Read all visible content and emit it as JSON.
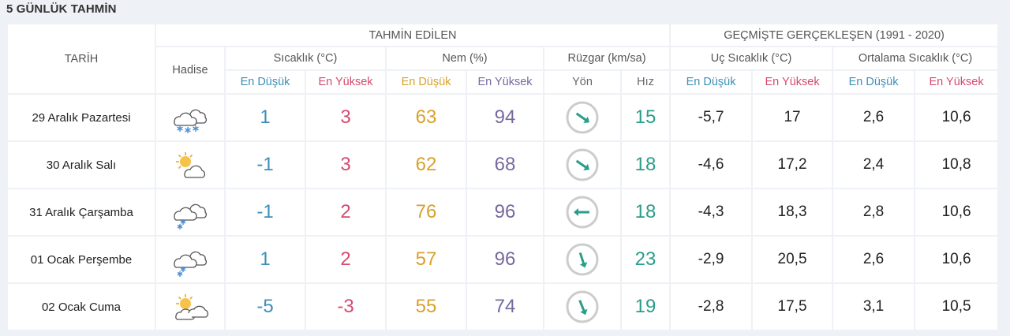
{
  "title": "5 GÜNLÜK TAHMİN",
  "headers": {
    "tarih": "TARİH",
    "tahmin": "TAHMİN EDİLEN",
    "gecmis": "GEÇMİŞTE GERÇEKLEŞEN (1991 - 2020)",
    "hadise": "Hadise",
    "sicaklik": "Sıcaklık (°C)",
    "nem": "Nem (%)",
    "ruzgar": "Rüzgar (km/sa)",
    "uc": "Uç Sıcaklık (°C)",
    "ortalama": "Ortalama Sıcaklık (°C)",
    "en_dusuk": "En Düşük",
    "en_yuksek": "En Yüksek",
    "yon": "Yön",
    "hiz": "Hız"
  },
  "rows": [
    {
      "date": "29 Aralık Pazartesi",
      "icon": "snow-cloud-icon",
      "temp_min": "1",
      "temp_max": "3",
      "hum_min": "63",
      "hum_max": "94",
      "wind_dir": "southeast-arrow-icon",
      "wind_speed": "15",
      "extreme_min": "-5,7",
      "extreme_max": "17",
      "avg_min": "2,6",
      "avg_max": "10,6"
    },
    {
      "date": "30 Aralık Salı",
      "icon": "partly-cloudy-icon",
      "temp_min": "-1",
      "temp_max": "3",
      "hum_min": "62",
      "hum_max": "68",
      "wind_dir": "southeast-arrow-icon",
      "wind_speed": "18",
      "extreme_min": "-4,6",
      "extreme_max": "17,2",
      "avg_min": "2,4",
      "avg_max": "10,8"
    },
    {
      "date": "31 Aralık Çarşamba",
      "icon": "snow-cloud-icon",
      "temp_min": "-1",
      "temp_max": "2",
      "hum_min": "76",
      "hum_max": "96",
      "wind_dir": "west-arrow-icon",
      "wind_speed": "18",
      "extreme_min": "-4,3",
      "extreme_max": "18,3",
      "avg_min": "2,8",
      "avg_max": "10,6"
    },
    {
      "date": "01 Ocak Perşembe",
      "icon": "snow-cloud-icon",
      "temp_min": "1",
      "temp_max": "2",
      "hum_min": "57",
      "hum_max": "96",
      "wind_dir": "south-arrow-icon",
      "wind_speed": "23",
      "extreme_min": "-2,9",
      "extreme_max": "20,5",
      "avg_min": "2,6",
      "avg_max": "10,6"
    },
    {
      "date": "02 Ocak Cuma",
      "icon": "partly-cloudy-icon",
      "temp_min": "-5",
      "temp_max": "-3",
      "hum_min": "55",
      "hum_max": "74",
      "wind_dir": "south-arrow-icon",
      "wind_speed": "19",
      "extreme_min": "-2,8",
      "extreme_max": "17,5",
      "avg_min": "3,1",
      "avg_max": "10,5"
    }
  ],
  "colors": {
    "min": "#3d8fb8",
    "max": "#d44a6f",
    "hum_min": "#d8a12b",
    "hum_max": "#77689e",
    "wind": "#2a9e8a"
  }
}
